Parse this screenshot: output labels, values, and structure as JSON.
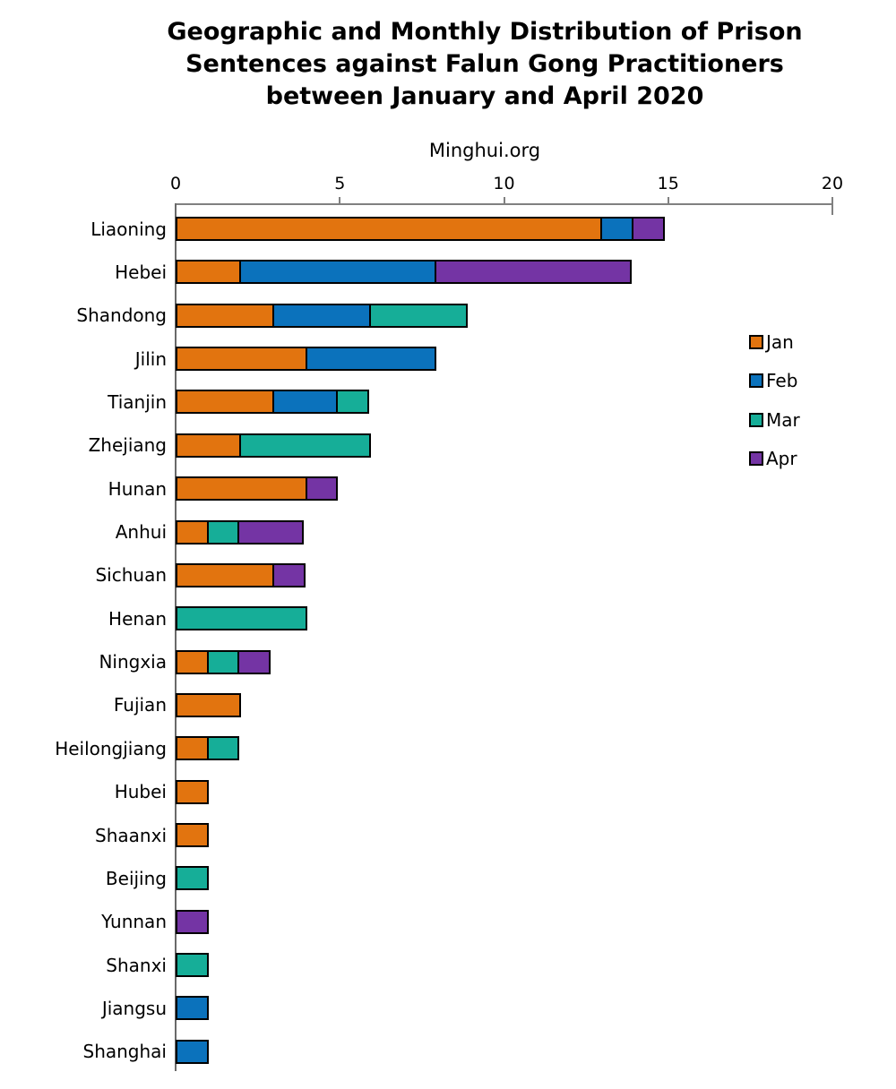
{
  "chart_data": {
    "type": "bar",
    "orientation": "horizontal",
    "stacked": true,
    "title": "Geographic and Monthly Distribution of Prison Sentences against Falun Gong Practitioners between January and April 2020",
    "title_lines": [
      "Geographic and Monthly Distribution of Prison",
      "Sentences against Falun Gong Practitioners",
      "between January and April 2020"
    ],
    "subtitle": "Minghui.org",
    "categories": [
      "Liaoning",
      "Hebei",
      "Shandong",
      "Jilin",
      "Tianjin",
      "Zhejiang",
      "Hunan",
      "Anhui",
      "Sichuan",
      "Henan",
      "Ningxia",
      "Fujian",
      "Heilongjiang",
      "Hubei",
      "Shaanxi",
      "Beijing",
      "Yunnan",
      "Shanxi",
      "Jiangsu",
      "Shanghai"
    ],
    "series": [
      {
        "name": "Jan",
        "color": "#E2740F",
        "values": [
          13,
          2,
          3,
          4,
          3,
          2,
          4,
          1,
          3,
          0,
          1,
          2,
          1,
          1,
          1,
          0,
          0,
          0,
          0,
          0
        ]
      },
      {
        "name": "Feb",
        "color": "#0B72BC",
        "values": [
          1,
          6,
          3,
          4,
          2,
          0,
          0,
          0,
          0,
          0,
          0,
          0,
          0,
          0,
          0,
          0,
          0,
          0,
          1,
          1
        ]
      },
      {
        "name": "Mar",
        "color": "#16AE98",
        "values": [
          0,
          0,
          3,
          0,
          1,
          4,
          0,
          1,
          0,
          4,
          1,
          0,
          1,
          0,
          0,
          1,
          0,
          1,
          0,
          0
        ]
      },
      {
        "name": "Apr",
        "color": "#7434A4",
        "values": [
          1,
          6,
          0,
          0,
          0,
          0,
          1,
          2,
          1,
          0,
          1,
          0,
          0,
          0,
          0,
          0,
          1,
          0,
          0,
          0
        ]
      }
    ],
    "totals": [
      15,
      14,
      9,
      8,
      6,
      6,
      5,
      4,
      4,
      4,
      3,
      2,
      2,
      1,
      1,
      1,
      1,
      1,
      1,
      1
    ],
    "xlim": [
      0,
      20
    ],
    "x_ticks": [
      0,
      5,
      10,
      15,
      20
    ],
    "axis_position": "top",
    "legend_position": "right",
    "grid": "off",
    "bar_outline_color": "#000000",
    "axis_color": "#808080"
  }
}
